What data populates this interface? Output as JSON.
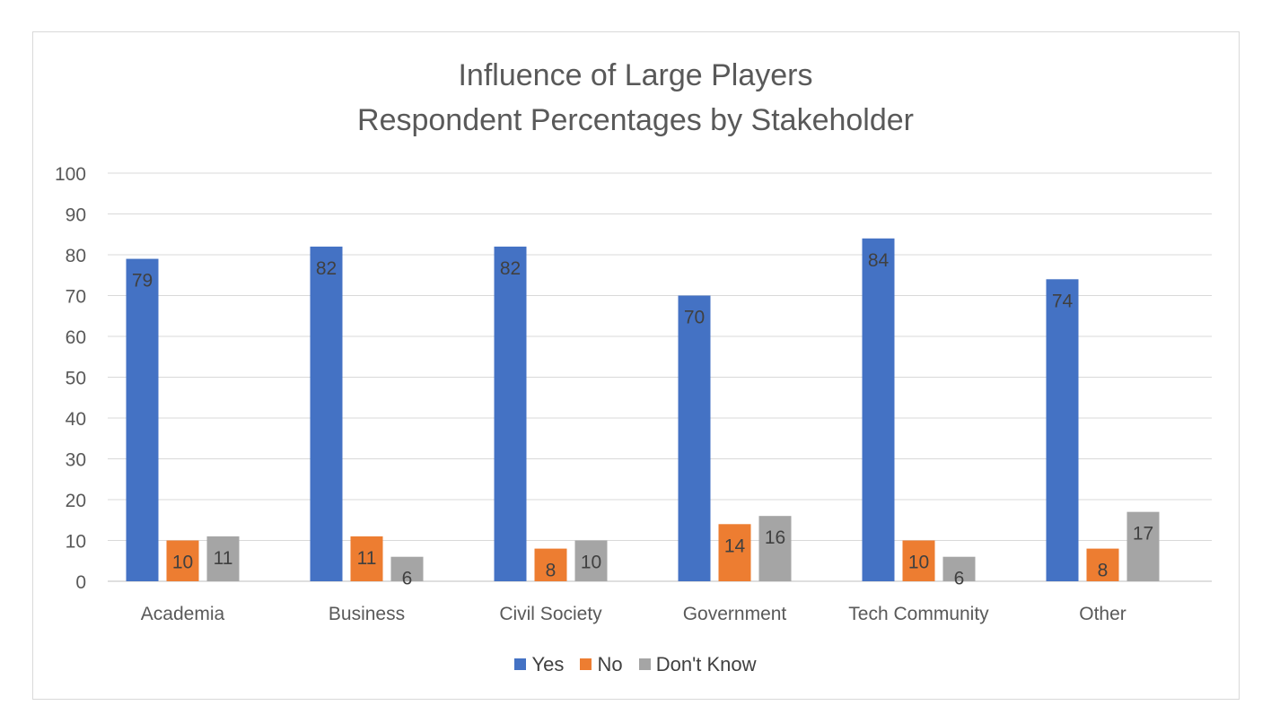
{
  "chart_data": {
    "type": "bar",
    "title": "Influence of Large Players",
    "subtitle": "Respondent Percentages by Stakeholder",
    "categories": [
      "Academia",
      "Business",
      "Civil Society",
      "Government",
      "Tech Community",
      "Other"
    ],
    "series": [
      {
        "name": "Yes",
        "color": "#4472c4",
        "values": [
          79,
          82,
          82,
          70,
          84,
          74
        ]
      },
      {
        "name": "No",
        "color": "#ed7d31",
        "values": [
          10,
          11,
          8,
          14,
          10,
          8
        ]
      },
      {
        "name": "Don't Know",
        "color": "#a5a5a5",
        "values": [
          11,
          6,
          10,
          16,
          6,
          17
        ]
      }
    ],
    "ylim": [
      0,
      100
    ],
    "yticks": [
      0,
      10,
      20,
      30,
      40,
      50,
      60,
      70,
      80,
      90,
      100
    ],
    "grid": true,
    "legend_position": "bottom",
    "data_labels": true
  }
}
